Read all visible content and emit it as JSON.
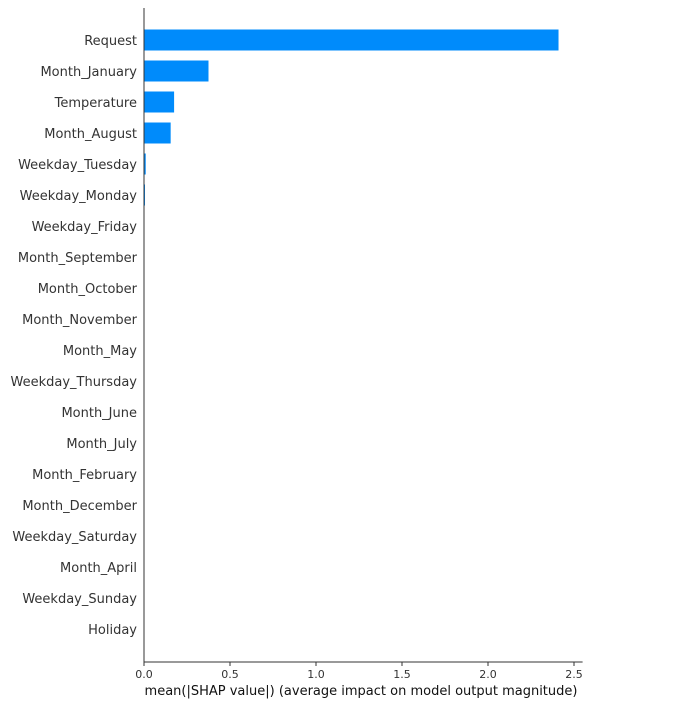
{
  "chart_data": {
    "type": "bar",
    "orientation": "horizontal",
    "categories": [
      "Request",
      "Month_January",
      "Temperature",
      "Month_August",
      "Weekday_Tuesday",
      "Weekday_Monday",
      "Weekday_Friday",
      "Month_September",
      "Month_October",
      "Month_November",
      "Month_May",
      "Weekday_Thursday",
      "Month_June",
      "Month_July",
      "Month_February",
      "Month_December",
      "Weekday_Saturday",
      "Month_April",
      "Weekday_Sunday",
      "Holiday"
    ],
    "values": [
      2.41,
      0.375,
      0.175,
      0.155,
      0.01,
      0.005,
      0,
      0,
      0,
      0,
      0,
      0,
      0,
      0,
      0,
      0,
      0,
      0,
      0,
      0
    ],
    "xlabel": "mean(|SHAP value|) (average impact on model output magnitude)",
    "xlim": [
      0,
      2.55
    ],
    "xticks": [
      0.0,
      0.5,
      1.0,
      1.5,
      2.0,
      2.5
    ],
    "xtick_labels": [
      "0.0",
      "0.5",
      "1.0",
      "1.5",
      "2.0",
      "2.5"
    ],
    "bar_color": "#008bfb",
    "axis_color": "#333333",
    "grid": false,
    "legend": "none"
  }
}
